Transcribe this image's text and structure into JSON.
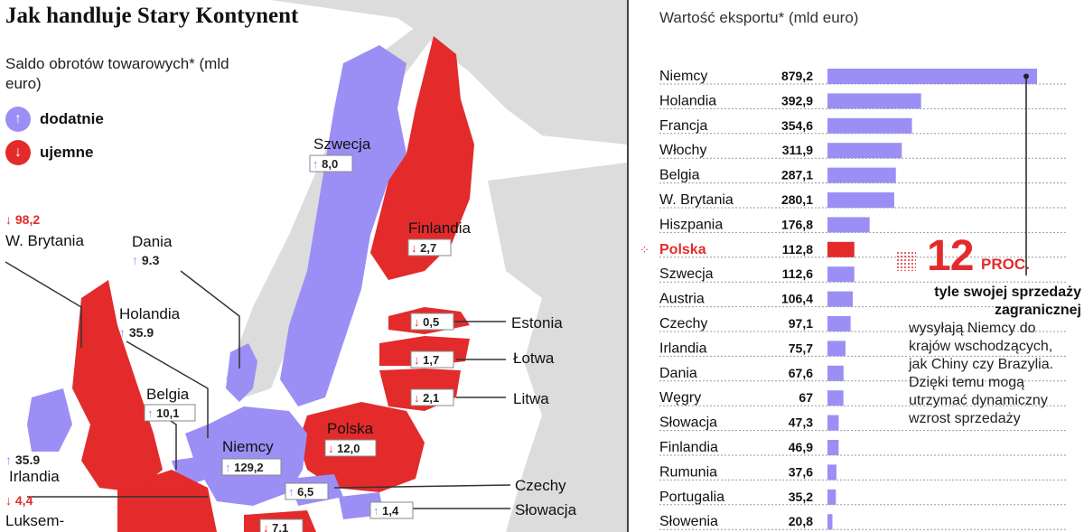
{
  "title": "Jak handluje Stary Kontynent",
  "saldo_label": "Saldo obrotów towarowych* (mld euro)",
  "legend": {
    "positive": "dodatnie",
    "negative": "ujemne"
  },
  "colors": {
    "positive": "#9b8ff5",
    "negative": "#e32b2b",
    "land_other": "#dcdcdc",
    "sea": "#ffffff"
  },
  "map_labels": [
    {
      "name": "Szwecja",
      "value": "8,0",
      "sign": "positive"
    },
    {
      "name": "Finlandia",
      "value": "2,7",
      "sign": "negative"
    },
    {
      "name": "Estonia",
      "value": "0,5",
      "sign": "negative"
    },
    {
      "name": "Łotwa",
      "value": "1,7",
      "sign": "negative"
    },
    {
      "name": "Litwa",
      "value": "2,1",
      "sign": "negative"
    },
    {
      "name": "Polska",
      "value": "12,0",
      "sign": "negative"
    },
    {
      "name": "Niemcy",
      "value": "129,2",
      "sign": "positive"
    },
    {
      "name": "Czechy",
      "value": "6,5",
      "sign": "positive"
    },
    {
      "name": "Słowacja",
      "value": "1,4",
      "sign": "positive"
    },
    {
      "name": "Dania",
      "value": "9.3",
      "sign": "positive"
    },
    {
      "name": "Holandia",
      "value": "35.9",
      "sign": "positive"
    },
    {
      "name": "Belgia",
      "value": "10,1",
      "sign": "positive"
    },
    {
      "name": "W. Brytania",
      "value": "98,2",
      "sign": "negative"
    },
    {
      "name": "Irlandia",
      "value": "35.9",
      "sign": "positive"
    },
    {
      "name": "Luksem-",
      "value": "4,4",
      "sign": "negative"
    },
    {
      "name": "",
      "value": "7,1",
      "sign": "negative"
    }
  ],
  "chart_data": {
    "type": "bar",
    "title": "Wartość eksportu* (mld euro)",
    "orientation": "horizontal",
    "categories": [
      "Niemcy",
      "Holandia",
      "Francja",
      "Włochy",
      "Belgia",
      "W. Brytania",
      "Hiszpania",
      "Polska",
      "Szwecja",
      "Austria",
      "Czechy",
      "Irlandia",
      "Dania",
      "Węgry",
      "Słowacja",
      "Finlandia",
      "Rumunia",
      "Portugalia",
      "Słowenia"
    ],
    "values": [
      879.2,
      392.9,
      354.6,
      311.9,
      287.1,
      280.1,
      176.8,
      112.8,
      112.6,
      106.4,
      97.1,
      75.7,
      67.6,
      67,
      47.3,
      46.9,
      37.6,
      35.2,
      20.8
    ],
    "value_labels": [
      "879,2",
      "392,9",
      "354,6",
      "311,9",
      "287,1",
      "280,1",
      "176,8",
      "112,8",
      "112,6",
      "106,4",
      "97,1",
      "75,7",
      "67,6",
      "67",
      "47,3",
      "46,9",
      "37,6",
      "35,2",
      "20,8"
    ],
    "highlight": "Polska",
    "xlim": [
      0,
      879.2
    ]
  },
  "callout": {
    "number": "12",
    "unit": "PROC.",
    "bold_text": "tyle swojej sprzedaży zagranicznej",
    "text": "wysyłają Niemcy do krajów wschodzących, jak Chiny czy Brazylia. Dzięki temu mogą utrzymać dynamiczny wzrost sprzedaży"
  }
}
